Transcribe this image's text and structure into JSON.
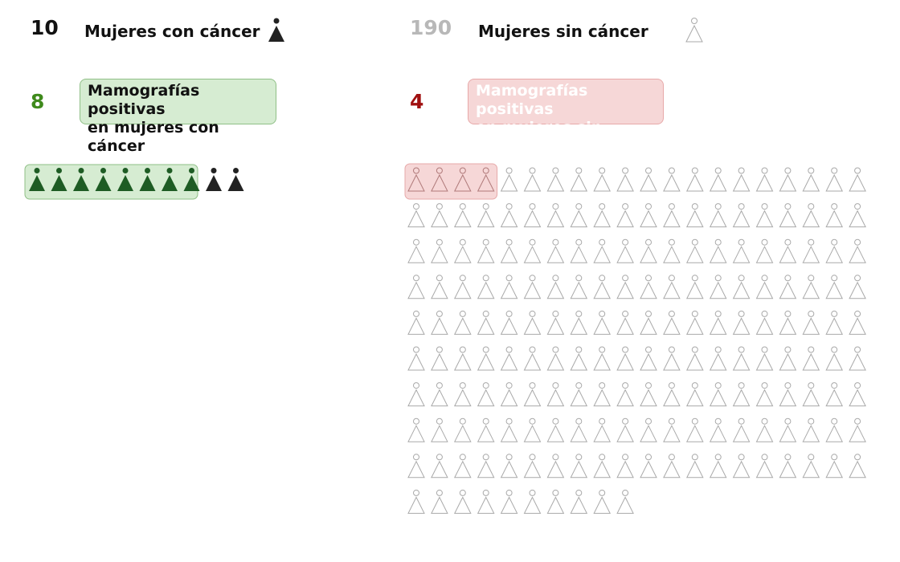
{
  "colors": {
    "dark": "#222222",
    "green_text": "#3f8a1c",
    "green_icon": "#1e5c24",
    "green_box_bg": "#d6ecd2",
    "green_box_border": "#8fbf86",
    "red_text": "#a01010",
    "red_box_bg": "#f6d7d7",
    "red_box_border": "#e7a9a9",
    "red_box_text": "#ffffff",
    "gray_text": "#b8b8b8",
    "outline_icon": "#a9a9a9"
  },
  "cancer": {
    "count": "10",
    "label": "Mujeres con cáncer",
    "icon": "woman-figure-filled-icon",
    "positives_count": "8",
    "positives_label_1": "Mamografías positivas",
    "positives_label_2": "en mujeres con cáncer"
  },
  "no_cancer": {
    "count": "190",
    "label": "Mujeres sin cáncer",
    "icon": "woman-figure-outline-icon",
    "positives_count": "4",
    "positives_label_1": "Mamografías positivas",
    "positives_label_2": "en mujeres sin cáncer"
  },
  "chart_data": {
    "type": "icon-array",
    "groups": [
      {
        "name": "Mujeres con cáncer",
        "total": 10,
        "positive": 8,
        "per_row": 10
      },
      {
        "name": "Mujeres sin cáncer",
        "total": 190,
        "positive": 4,
        "per_row": 20
      }
    ]
  }
}
